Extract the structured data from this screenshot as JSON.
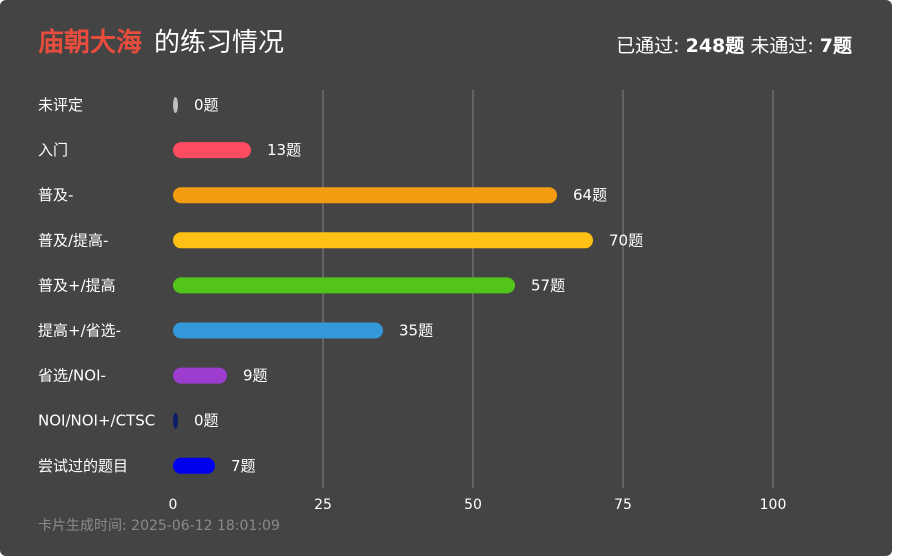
{
  "header": {
    "username": "庙朝大海",
    "title_suffix": "的练习情况",
    "passed_label": "已通过:",
    "passed_count": "248题",
    "failed_label": "未通过:",
    "failed_count": "7题"
  },
  "footer": {
    "generated_label": "卡片生成时间:",
    "generated_time": "2025-06-12 18:01:09"
  },
  "chart_data": {
    "type": "bar",
    "orientation": "horizontal",
    "categories": [
      "未评定",
      "入门",
      "普及-",
      "普及/提高-",
      "普及+/提高",
      "提高+/省选-",
      "省选/NOI-",
      "NOI/NOI+/CTSC",
      "尝试过的题目"
    ],
    "values": [
      0,
      13,
      64,
      70,
      57,
      35,
      9,
      0,
      7
    ],
    "value_labels": [
      "0题",
      "13题",
      "64题",
      "70题",
      "57题",
      "35题",
      "9题",
      "0题",
      "7题"
    ],
    "colors": [
      "#bfbfbf",
      "#fe4c61",
      "#f39c11",
      "#ffc116",
      "#52c41a",
      "#3498db",
      "#9d3dcf",
      "#0e1d69",
      "#0000ee"
    ],
    "xlim": [
      0,
      100
    ],
    "xticks": [
      "0",
      "25",
      "50",
      "75",
      "100"
    ],
    "grid": true
  }
}
